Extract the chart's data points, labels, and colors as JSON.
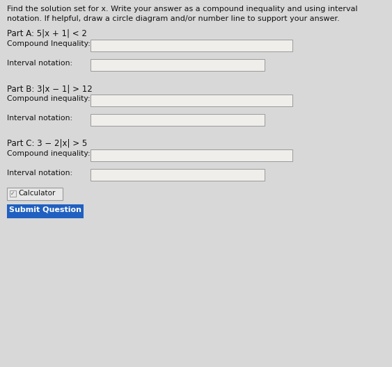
{
  "background_color": "#d8d8d8",
  "header_text_line1": "Find the solution set for x. Write your answer as a compound inequality and using interval",
  "header_text_line2": "notation. If helpful, draw a circle diagram and/or number line to support your answer.",
  "parts": [
    {
      "label": "Part A: 5|x + 1| < 2",
      "compound_label": "Compound Inequality:",
      "interval_label": "Interval notation:"
    },
    {
      "label": "Part B: 3|x − 1| > 12",
      "compound_label": "Compound inequality:",
      "interval_label": "Interval notation:"
    },
    {
      "label": "Part C: 3 − 2|x| > 5",
      "compound_label": "Compound inequality:",
      "interval_label": "Interval notation:"
    }
  ],
  "calculator_text": "Calculator",
  "submit_text": "Submit Question",
  "submit_color": "#2060c0",
  "submit_text_color": "#ffffff",
  "box_fill": "#f0eeeb",
  "box_edge": "#999999",
  "text_color": "#111111",
  "header_fontsize": 8.0,
  "label_fontsize": 7.8,
  "part_fontsize": 8.5,
  "calc_fontsize": 7.5,
  "submit_fontsize": 8.0
}
